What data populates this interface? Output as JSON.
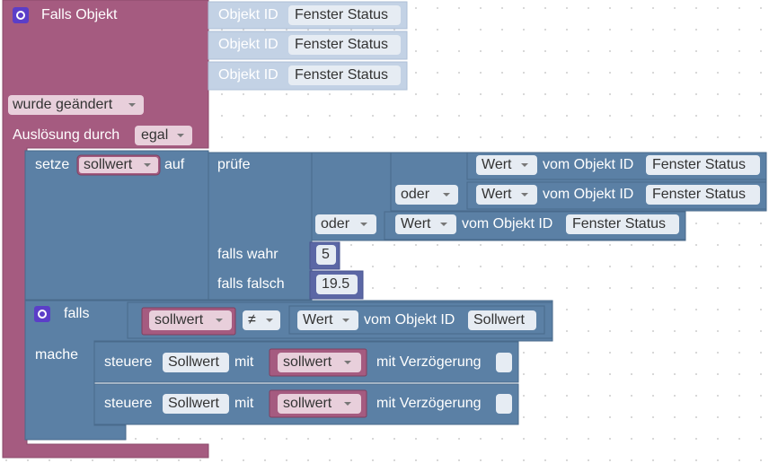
{
  "trigger": {
    "title": "Falls Objekt",
    "objects": [
      {
        "label": "Objekt ID",
        "value": "Fenster Status"
      },
      {
        "label": "Objekt ID",
        "value": "Fenster Status"
      },
      {
        "label": "Objekt ID",
        "value": "Fenster Status"
      }
    ],
    "event": "wurde geändert",
    "source_label": "Auslösung durch",
    "source": "egal"
  },
  "set": {
    "keyword": "setze",
    "variable": "sollwert",
    "to": "auf",
    "check": "prüfe",
    "conditions": [
      {
        "field": "Wert",
        "label": "vom Objekt ID",
        "object": "Fenster Status"
      },
      {
        "operator": "oder",
        "field": "Wert",
        "label": "vom Objekt ID",
        "object": "Fenster Status"
      },
      {
        "operator": "oder",
        "field": "Wert",
        "label": "vom Objekt ID",
        "object": "Fenster Status"
      }
    ],
    "if_true_label": "falls wahr",
    "if_true": 5,
    "if_false_label": "falls falsch",
    "if_false": 19.5
  },
  "if_block": {
    "keyword": "falls",
    "variable": "sollwert",
    "operator": "≠",
    "field": "Wert",
    "label": "vom Objekt ID",
    "object": "Sollwert",
    "do": "mache",
    "statements": [
      {
        "keyword": "steuere",
        "object": "Sollwert",
        "with": "mit",
        "variable": "sollwert",
        "delay": "mit Verzögerung"
      },
      {
        "keyword": "steuere",
        "object": "Sollwert",
        "with": "mit",
        "variable": "sollwert",
        "delay": "mit Verzögerung"
      }
    ]
  }
}
